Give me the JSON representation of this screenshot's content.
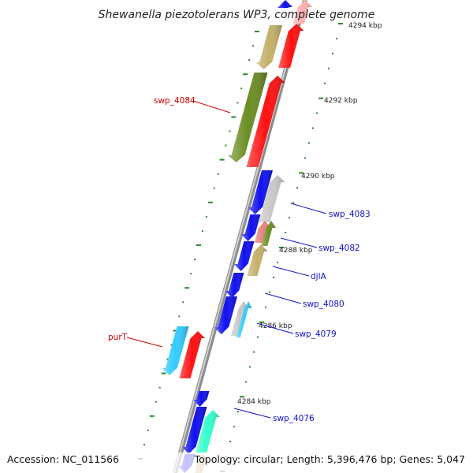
{
  "title": "Shewanella piezotolerans WP3, complete genome",
  "footer": {
    "accession": "Accession: NC_011566",
    "summary": "Topology: circular; Length: 5,396,476 bp; Genes: 5,047"
  },
  "ticks": [
    "4294 kbp",
    "4292 kbp",
    "4290 kbp",
    "4288 kbp",
    "4286 kbp",
    "4284 kbp"
  ],
  "gene_labels": [
    {
      "name": "swp_4084",
      "strand": "forward"
    },
    {
      "name": "swp_4083",
      "strand": "reverse"
    },
    {
      "name": "swp_4082",
      "strand": "reverse"
    },
    {
      "name": "djlA",
      "strand": "reverse"
    },
    {
      "name": "swp_4080",
      "strand": "reverse"
    },
    {
      "name": "swp_4079",
      "strand": "reverse"
    },
    {
      "name": "purT",
      "strand": "forward"
    },
    {
      "name": "swp_4076",
      "strand": "reverse"
    }
  ],
  "colors": {
    "forward_label": "#cc0000",
    "reverse_label": "#1010cc",
    "backbone": "#8c8c8c",
    "tick": "#2a8a2a",
    "gene_red": "#ff1010",
    "gene_blue": "#1010ee",
    "gene_olive": "#6b8e23",
    "gene_khaki": "#c4b06a",
    "gene_gray": "#c8c8c8",
    "gene_skyblue": "#33ccff",
    "gene_aqua": "#33ffcc"
  }
}
